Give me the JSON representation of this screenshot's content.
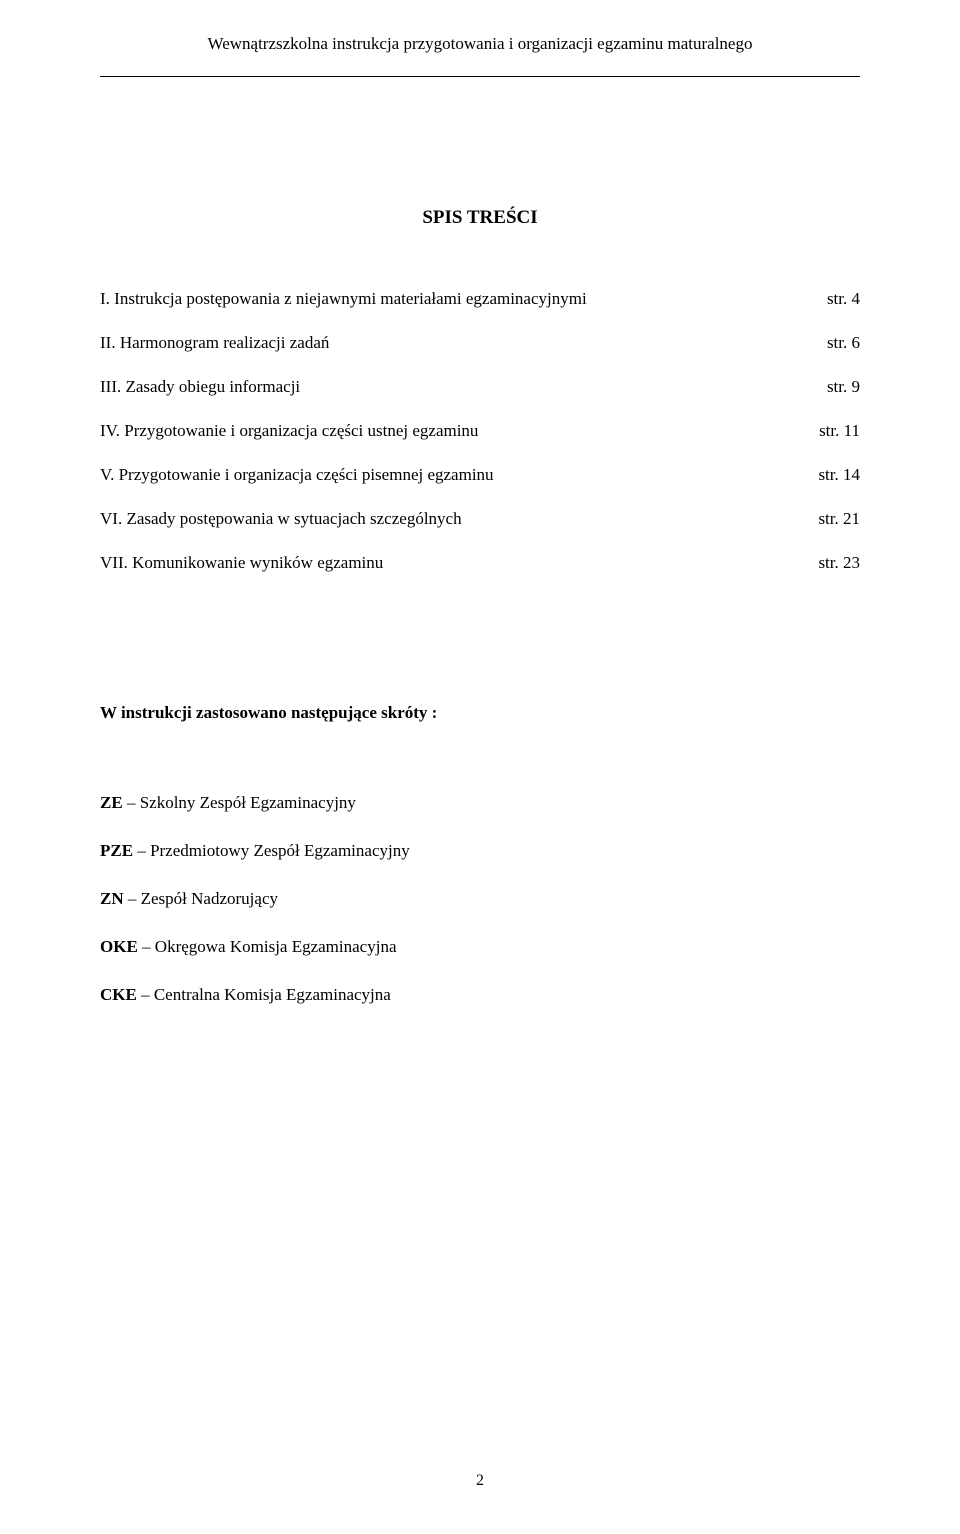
{
  "header": "Wewnątrzszkolna instrukcja przygotowania i organizacji egzaminu maturalnego",
  "title": "SPIS TREŚCI",
  "toc": [
    {
      "label": "I. Instrukcja postępowania z niejawnymi materiałami egzaminacyjnymi",
      "page": " str. 4"
    },
    {
      "label": "II. Harmonogram realizacji zadań",
      "page": " str. 6"
    },
    {
      "label": "III. Zasady obiegu informacji",
      "page": "str. 9"
    },
    {
      "label": "IV. Przygotowanie i organizacja części ustnej egzaminu",
      "page": " str. 11"
    },
    {
      "label": "V. Przygotowanie i organizacja części pisemnej egzaminu",
      "page": " str. 14"
    },
    {
      "label": "VI. Zasady postępowania w sytuacjach szczególnych",
      "page": "str. 21"
    },
    {
      "label": "VII. Komunikowanie wyników egzaminu",
      "page": "str. 23"
    }
  ],
  "abbr_title": "W instrukcji zastosowano następujące skróty :",
  "abbr": [
    {
      "code": "ZE",
      "desc": " – Szkolny Zespół Egzaminacyjny"
    },
    {
      "code": "PZE",
      "desc": " – Przedmiotowy Zespół Egzaminacyjny"
    },
    {
      "code": "ZN",
      "desc": " – Zespół Nadzorujący"
    },
    {
      "code": "OKE",
      "desc": " – Okręgowa Komisja Egzaminacyjna"
    },
    {
      "code": "CKE",
      "desc": " – Centralna Komisja Egzaminacyjna"
    }
  ],
  "page_number": "2"
}
